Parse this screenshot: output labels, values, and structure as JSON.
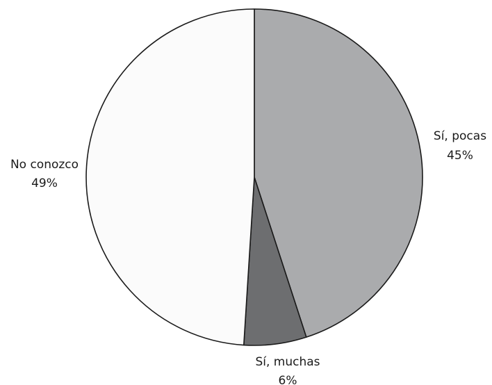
{
  "chart_data": {
    "type": "pie",
    "title": "",
    "slices": [
      {
        "label": "Sí, pocas",
        "value": 45,
        "value_label": "45%",
        "color": "#aaabad"
      },
      {
        "label": "Sí, muchas",
        "value": 6,
        "value_label": "6%",
        "color": "#6d6e70"
      },
      {
        "label": "No conozco",
        "value": 49,
        "value_label": "49%",
        "color": "#fbfbfb"
      }
    ],
    "start_angle": "12 o'clock",
    "direction": "clockwise",
    "outline_color": "#1a1a1a",
    "legend": "none"
  }
}
